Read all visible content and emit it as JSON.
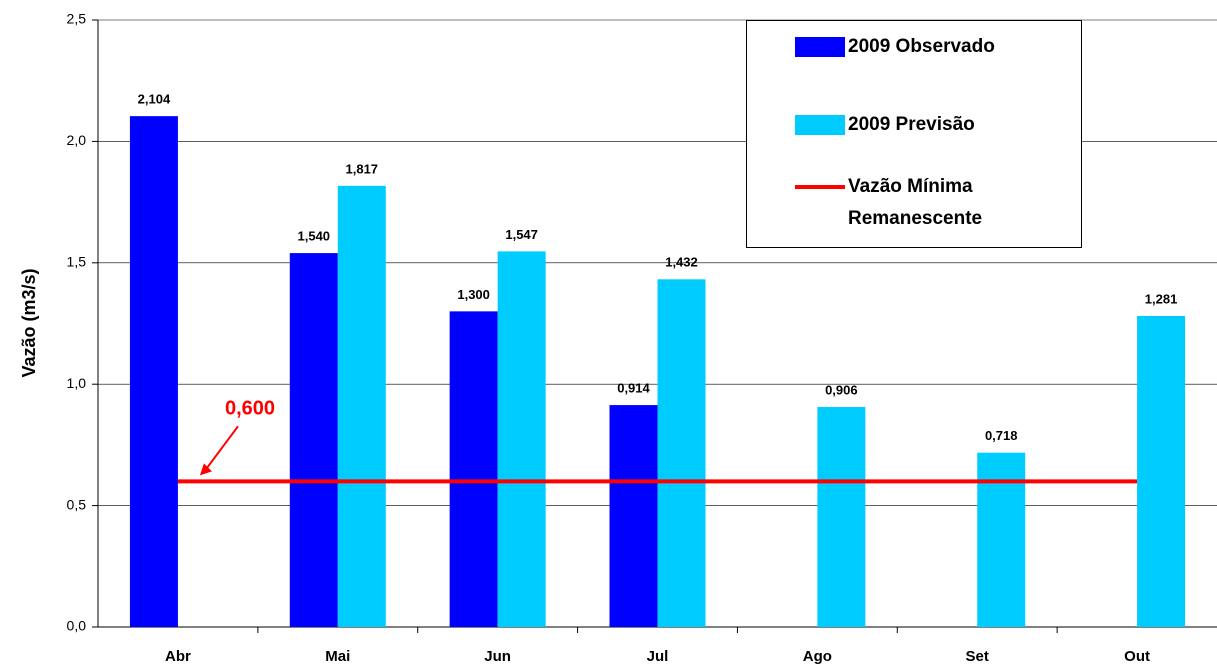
{
  "chart_data": {
    "type": "bar",
    "y_label": "Vazão (m3/s)",
    "categories": [
      "Abr",
      "Mai",
      "Jun",
      "Jul",
      "Ago",
      "Set",
      "Out"
    ],
    "series": [
      {
        "name": "2009 Observado",
        "type": "bar",
        "color": "#0000ff",
        "values": [
          2.104,
          1.54,
          1.3,
          0.914,
          null,
          null,
          null
        ],
        "value_labels": [
          "2,104",
          "1,540",
          "1,300",
          "0,914",
          null,
          null,
          null
        ]
      },
      {
        "name": "2009 Previsão",
        "type": "bar",
        "color": "#00ccff",
        "values": [
          null,
          1.817,
          1.547,
          1.432,
          0.906,
          0.718,
          1.281
        ],
        "value_labels": [
          null,
          "1,817",
          "1,547",
          "1,432",
          "0,906",
          "0,718",
          "1,281"
        ]
      },
      {
        "name": "Vazão Mínima Remanescente",
        "type": "line",
        "color": "#ff0000",
        "values": [
          0.6,
          0.6,
          0.6,
          0.6,
          0.6,
          0.6,
          0.6
        ]
      }
    ],
    "annotation": {
      "text": "0,600",
      "color": "#ff0000"
    },
    "ylim": [
      0,
      2.5
    ],
    "yticks": [
      {
        "value": 0,
        "label": "0,0"
      },
      {
        "value": 0.5,
        "label": "0,5"
      },
      {
        "value": 1,
        "label": "1,0"
      },
      {
        "value": 1.5,
        "label": "1,5"
      },
      {
        "value": 2,
        "label": "2,0"
      },
      {
        "value": 2.5,
        "label": "2,5"
      }
    ],
    "grid": true
  }
}
